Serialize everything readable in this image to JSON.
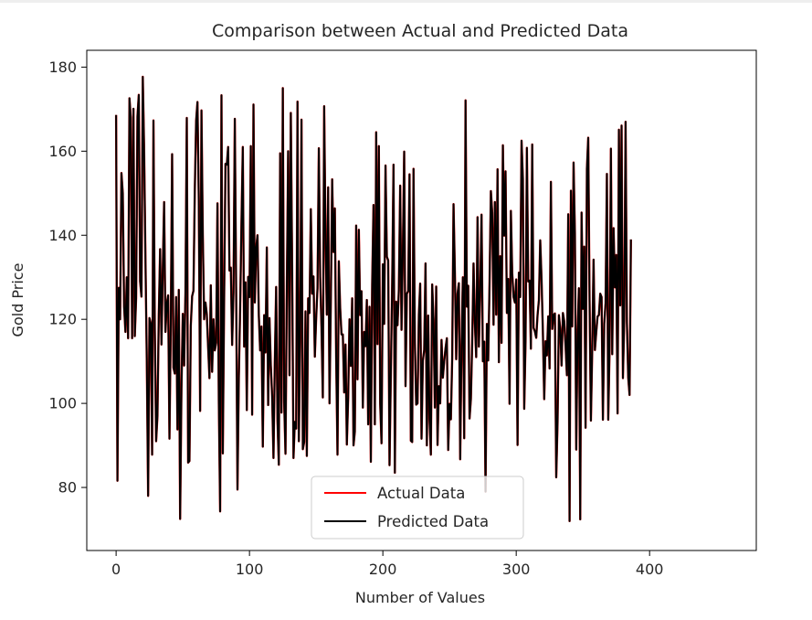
{
  "chart_data": {
    "type": "line",
    "title": "Comparison between Actual and Predicted Data",
    "xlabel": "Number of Values",
    "ylabel": "Gold Price",
    "xlim": [
      -22,
      480
    ],
    "ylim": [
      65,
      184
    ],
    "xticks": [
      0,
      100,
      200,
      300,
      400
    ],
    "yticks": [
      80,
      100,
      120,
      140,
      160,
      180
    ],
    "grid": false,
    "legend_position": "lower-center",
    "series": [
      {
        "name": "Actual Data",
        "color": "#ff0000",
        "values": [
          168.6,
          81.6,
          127.5,
          120.0,
          154.8,
          150.0,
          123.0,
          117.0,
          130.0,
          115.5,
          172.6,
          168.0,
          115.5,
          170.1,
          116.0,
          125.0,
          168.3,
          173.4,
          129.0,
          125.4,
          177.7,
          160.3,
          134.4,
          110.3,
          78.0,
          120.3,
          119.0,
          87.8,
          167.3,
          118.0,
          91.0,
          97.0,
          121.2,
          136.7,
          114.0,
          131.7,
          147.9,
          117.0,
          123.7,
          125.7,
          91.6,
          119.1,
          159.3,
          108.5,
          107.1,
          125.3,
          93.8,
          127.0,
          72.5,
          103.6,
          121.3,
          109.0,
          126.4,
          167.9,
          85.9,
          86.3,
          118.5,
          125.5,
          126.8,
          150.6,
          167.2,
          171.7,
          148.3,
          98.2,
          169.7,
          140.0,
          120.0,
          124.0,
          121.2,
          113.4,
          106.0,
          128.1,
          107.5,
          120.0,
          112.6,
          114.4,
          147.6,
          100.6,
          74.3,
          173.3,
          88.1,
          125.2,
          157.0,
          156.8,
          161.0,
          131.6,
          132.3,
          113.9,
          126.4,
          167.7,
          127.0,
          79.5,
          106.0,
          122.5,
          143.1,
          161.0,
          113.5,
          128.8,
          98.4,
          130.1,
          125.3,
          161.2,
          97.3,
          171.1,
          124.0,
          136.9,
          140.0,
          121.0,
          112.6,
          118.3,
          89.7,
          121.0,
          112.1,
          137.1,
          99.6,
          120.3,
          109.0,
          101.7,
          87.0,
          109.8,
          127.7,
          96.0,
          85.4,
          159.5,
          97.8,
          175.0,
          100.5,
          88.0,
          127.4,
          160.0,
          106.7,
          169.1,
          132.4,
          87.0,
          95.6,
          94.0,
          171.8,
          91.0,
          114.6,
          167.5,
          89.1,
          90.8,
          121.9,
          87.5,
          125.0,
          121.5,
          146.2,
          126.1,
          130.2,
          111.1,
          120.3,
          127.4,
          160.7,
          130.0,
          118.1,
          101.4,
          170.7,
          139.9,
          121.1,
          151.4,
          100.0,
          124.6,
          153.3,
          136.0,
          146.4,
          111.0,
          87.8,
          133.8,
          122.7,
          116.4,
          116.4,
          102.6,
          114.0,
          90.2,
          101.4,
          120.0,
          108.9,
          125.0,
          90.0,
          93.3,
          142.3,
          105.7,
          141.3,
          121.0,
          126.7,
          99.0,
          117.0,
          113.6,
          124.6,
          95.0,
          123.0,
          86.1,
          128.4,
          147.2,
          95.0,
          164.5,
          114.1,
          161.2,
          100.0,
          90.5,
          133.1,
          118.9,
          156.6,
          134.9,
          134.0,
          85.3,
          107.2,
          128.8,
          156.8,
          83.5,
          124.2,
          118.6,
          127.0,
          151.8,
          117.5,
          136.1,
          159.9,
          104.1,
          126.1,
          126.7,
          154.5,
          91.1,
          90.8,
          155.8,
          114.6,
          99.7,
          100.0,
          121.0,
          128.5,
          91.6,
          110.2,
          112.7,
          133.3,
          90.0,
          120.9,
          96.2,
          87.8,
          128.3,
          120.0,
          99.0,
          127.8,
          90.1,
          104.1,
          100.0,
          115.1,
          106.1,
          110.0,
          113.1,
          115.5,
          88.9,
          99.9,
          96.2,
          110.6,
          147.4,
          131.4,
          110.5,
          126.1,
          128.6,
          86.7,
          113.7,
          130.0,
          91.7,
          172.1,
          123.0,
          128.0,
          96.4,
          101.0,
          114.6,
          133.3,
          119.0,
          111.0,
          144.3,
          113.5,
          126.5,
          144.9,
          110.0,
          114.7,
          79.0,
          118.9,
          110.2,
          128.5,
          150.5,
          145.4,
          118.7,
          147.9,
          121.1,
          155.7,
          109.8,
          135.0,
          114.4,
          161.4,
          139.9,
          155.2,
          121.5,
          129.6,
          99.9,
          145.8,
          131.0,
          125.3,
          124.0,
          129.5,
          90.1,
          131.1,
          125.3,
          162.5,
          153.4,
          98.7,
          114.8,
          160.8,
          129.0,
          129.2,
          113.0,
          161.6,
          118.0,
          117.1,
          115.6,
          121.0,
          124.5,
          138.8,
          129.5,
          117.0,
          101.0,
          114.8,
          111.4,
          120.7,
          108.3,
          152.7,
          117.7,
          121.0,
          121.4,
          82.4,
          95.7,
          121.0,
          117.7,
          109.0,
          121.5,
          119.5,
          113.7,
          106.7,
          145.0,
          72.0,
          150.6,
          118.3,
          157.3,
          140.4,
          89.0,
          116.5,
          127.4,
          72.4,
          145.4,
          122.5,
          137.3,
          94.2,
          155.8,
          163.2,
          124.4,
          95.9,
          113.1,
          134.2,
          112.7,
          116.9,
          120.7,
          121.0,
          126.1,
          125.3,
          96.1,
          119.0,
          123.8,
          154.6,
          96.1,
          112.9,
          160.6,
          111.7,
          141.7,
          127.6,
          135.3,
          97.6,
          165.1,
          123.3,
          166.1,
          106.0,
          120.0,
          167.0,
          119.2,
          106.1,
          102.0,
          139.0
        ]
      },
      {
        "name": "Predicted Data",
        "color": "#000000",
        "values": [
          168.6,
          81.6,
          127.5,
          120.0,
          154.8,
          150.0,
          123.0,
          117.0,
          130.0,
          115.5,
          172.6,
          168.0,
          115.5,
          170.1,
          116.0,
          125.0,
          168.3,
          173.4,
          129.0,
          125.4,
          177.7,
          160.3,
          134.4,
          110.3,
          78.0,
          120.3,
          119.0,
          87.8,
          167.3,
          118.0,
          91.0,
          97.0,
          121.2,
          136.7,
          114.0,
          131.7,
          147.9,
          117.0,
          123.7,
          125.7,
          91.6,
          119.1,
          159.3,
          108.5,
          107.1,
          125.3,
          93.8,
          127.0,
          72.5,
          103.6,
          121.3,
          109.0,
          126.4,
          167.9,
          85.9,
          86.3,
          118.5,
          125.5,
          126.8,
          150.6,
          167.2,
          171.7,
          148.3,
          98.2,
          169.7,
          140.0,
          120.0,
          124.0,
          121.2,
          113.4,
          106.0,
          128.1,
          107.5,
          120.0,
          112.6,
          114.4,
          147.6,
          100.6,
          74.3,
          173.3,
          88.1,
          125.2,
          157.0,
          156.8,
          161.0,
          131.6,
          132.3,
          113.9,
          126.4,
          167.7,
          127.0,
          79.5,
          106.0,
          122.5,
          143.1,
          161.0,
          113.5,
          128.8,
          98.4,
          130.1,
          125.3,
          161.2,
          97.3,
          171.1,
          124.0,
          136.9,
          140.0,
          121.0,
          112.6,
          118.3,
          89.7,
          121.0,
          112.1,
          137.1,
          99.6,
          120.3,
          109.0,
          101.7,
          87.0,
          109.8,
          127.7,
          96.0,
          85.4,
          159.5,
          97.8,
          175.0,
          100.5,
          88.0,
          127.4,
          160.0,
          106.7,
          169.1,
          132.4,
          87.0,
          95.6,
          94.0,
          171.8,
          91.0,
          114.6,
          167.5,
          89.1,
          90.8,
          121.9,
          87.5,
          125.0,
          121.5,
          146.2,
          126.1,
          130.2,
          111.1,
          120.3,
          127.4,
          160.7,
          130.0,
          118.1,
          101.4,
          170.7,
          139.9,
          121.1,
          151.4,
          100.0,
          124.6,
          153.3,
          136.0,
          146.4,
          111.0,
          87.8,
          133.8,
          122.7,
          116.4,
          116.4,
          102.6,
          114.0,
          90.2,
          101.4,
          120.0,
          108.9,
          125.0,
          90.0,
          93.3,
          142.3,
          105.7,
          141.3,
          121.0,
          126.7,
          99.0,
          117.0,
          113.6,
          124.6,
          95.0,
          123.0,
          86.1,
          128.4,
          147.2,
          95.0,
          164.5,
          114.1,
          161.2,
          100.0,
          90.5,
          133.1,
          118.9,
          156.6,
          134.9,
          134.0,
          85.3,
          107.2,
          128.8,
          156.8,
          83.5,
          124.2,
          118.6,
          127.0,
          151.8,
          117.5,
          136.1,
          159.9,
          104.1,
          126.1,
          126.7,
          154.5,
          91.1,
          90.8,
          155.8,
          114.6,
          99.7,
          100.0,
          121.0,
          128.5,
          91.6,
          110.2,
          112.7,
          133.3,
          90.0,
          120.9,
          96.2,
          87.8,
          128.3,
          120.0,
          99.0,
          127.8,
          90.1,
          104.1,
          100.0,
          115.1,
          106.1,
          110.0,
          113.1,
          115.5,
          88.9,
          99.9,
          96.2,
          110.6,
          147.4,
          131.4,
          110.5,
          126.1,
          128.6,
          86.7,
          113.7,
          130.0,
          91.7,
          172.1,
          123.0,
          128.0,
          96.4,
          101.0,
          114.6,
          133.3,
          119.0,
          111.0,
          144.3,
          113.5,
          126.5,
          144.9,
          110.0,
          114.7,
          79.0,
          118.9,
          110.2,
          128.5,
          150.5,
          145.4,
          118.7,
          147.9,
          121.1,
          155.7,
          109.8,
          135.0,
          114.4,
          161.4,
          139.9,
          155.2,
          121.5,
          129.6,
          99.9,
          145.8,
          131.0,
          125.3,
          124.0,
          129.5,
          90.1,
          131.1,
          125.3,
          162.5,
          153.4,
          98.7,
          114.8,
          160.8,
          129.0,
          129.2,
          113.0,
          161.6,
          118.0,
          117.1,
          115.6,
          121.0,
          124.5,
          138.8,
          129.5,
          117.0,
          101.0,
          114.8,
          111.4,
          120.7,
          108.3,
          152.7,
          117.7,
          121.0,
          121.4,
          82.4,
          95.7,
          121.0,
          117.7,
          109.0,
          121.5,
          119.5,
          113.7,
          106.7,
          145.0,
          72.0,
          150.6,
          118.3,
          157.3,
          140.4,
          89.0,
          116.5,
          127.4,
          72.4,
          145.4,
          122.5,
          137.3,
          94.2,
          155.8,
          163.2,
          124.4,
          95.9,
          113.1,
          134.2,
          112.7,
          116.9,
          120.7,
          121.0,
          126.1,
          125.3,
          96.1,
          119.0,
          123.8,
          154.6,
          96.1,
          112.9,
          160.6,
          111.7,
          141.7,
          127.6,
          135.3,
          97.6,
          165.1,
          123.3,
          166.1,
          106.0,
          120.0,
          167.0,
          119.2,
          106.1,
          102.0,
          139.0
        ]
      }
    ]
  }
}
